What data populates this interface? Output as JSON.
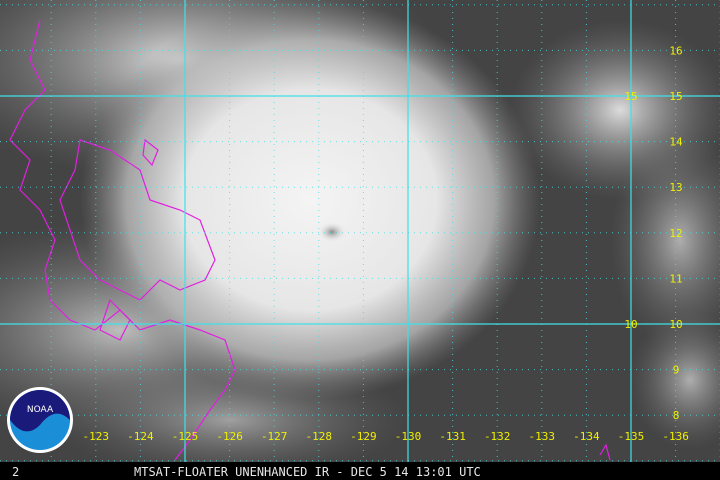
{
  "image": {
    "title_bar": "MTSAT-FLOATER UNENHANCED IR - DEC 5 14 13:01 UTC",
    "frame_number": "2",
    "logo": {
      "text": "NOAA",
      "icon": "noaa-logo-icon"
    },
    "longitude_labels": [
      "-123",
      "-124",
      "-125",
      "-126",
      "-127",
      "-128",
      "-129",
      "-130",
      "-131",
      "-132",
      "-133",
      "-134",
      "-135",
      "-136"
    ],
    "longitude_values": [
      -123,
      -124,
      -125,
      -126,
      -127,
      -128,
      -129,
      -130,
      -131,
      -132,
      -133,
      -134,
      -135,
      -136
    ],
    "latitude_labels": [
      "16",
      "15",
      "14",
      "13",
      "12",
      "11",
      "10",
      "9",
      "8"
    ],
    "latitude_values": [
      16,
      15,
      14,
      13,
      12,
      11,
      10,
      9,
      8
    ],
    "major_grid_longitudes": [
      -125,
      -130,
      -135
    ],
    "major_grid_latitudes": [
      10,
      15
    ],
    "inner_latitude_labels": [
      "15",
      "10"
    ],
    "colors": {
      "grid": "#40e0e8",
      "labels": "#f0f000",
      "coastline": "#e020e0",
      "title_bar": "#000000"
    }
  }
}
